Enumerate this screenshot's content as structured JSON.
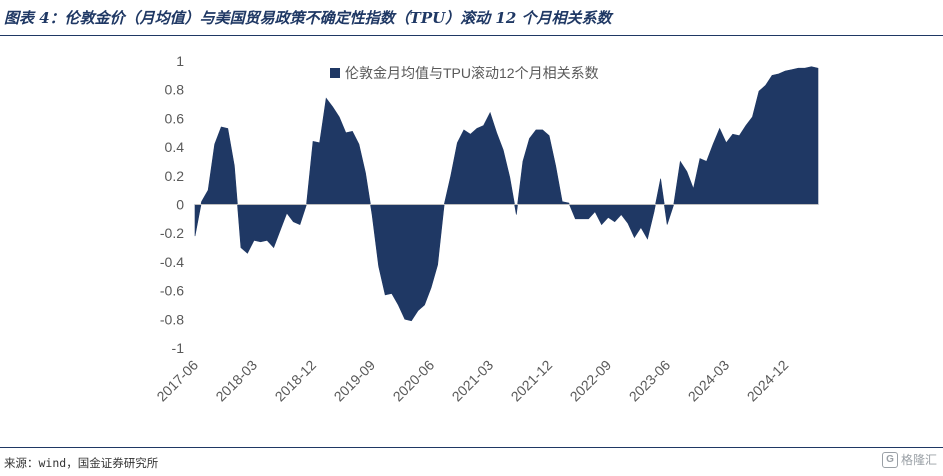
{
  "header": {
    "title": "图表 4：伦敦金价（月均值）与美国贸易政策不确定性指数（TPU）滚动 12 个月相关系数"
  },
  "footer": {
    "source": "来源：wind，国金证券研究所"
  },
  "watermark": {
    "logo": "G",
    "text": "格隆汇"
  },
  "colors": {
    "series": "#1f3864",
    "axis": "#bfbfbf",
    "text": "#595959"
  },
  "chart_data": {
    "type": "area",
    "ylim": [
      -1,
      1
    ],
    "yticks": [
      "1",
      "0.8",
      "0.6",
      "0.4",
      "0.2",
      "0",
      "-0.2",
      "-0.4",
      "-0.6",
      "-0.8",
      "-1"
    ],
    "xticks": [
      "2017-06",
      "2018-03",
      "2018-12",
      "2019-09",
      "2020-06",
      "2021-03",
      "2021-12",
      "2022-09",
      "2023-06",
      "2024-03",
      "2024-12"
    ],
    "x_start": "2017-06",
    "x_end": "2025-04",
    "legend_position": "top",
    "series": [
      {
        "name": "伦敦金月均值与TPU滚动12个月相关系数",
        "values": [
          -0.22,
          0.02,
          0.1,
          0.42,
          0.54,
          0.53,
          0.27,
          -0.3,
          -0.34,
          -0.25,
          -0.26,
          -0.25,
          -0.3,
          -0.18,
          -0.06,
          -0.12,
          -0.14,
          0.0,
          0.44,
          0.43,
          0.74,
          0.68,
          0.61,
          0.5,
          0.51,
          0.42,
          0.22,
          -0.07,
          -0.43,
          -0.63,
          -0.62,
          -0.7,
          -0.8,
          -0.81,
          -0.74,
          -0.7,
          -0.58,
          -0.42,
          0.0,
          0.2,
          0.43,
          0.52,
          0.49,
          0.53,
          0.55,
          0.64,
          0.5,
          0.38,
          0.19,
          -0.07,
          0.3,
          0.46,
          0.52,
          0.52,
          0.48,
          0.27,
          0.02,
          0.01,
          -0.1,
          -0.1,
          -0.1,
          -0.05,
          -0.14,
          -0.09,
          -0.12,
          -0.07,
          -0.13,
          -0.23,
          -0.16,
          -0.24,
          -0.05,
          0.18,
          -0.14,
          0.0,
          0.3,
          0.23,
          0.11,
          0.32,
          0.3,
          0.42,
          0.53,
          0.43,
          0.49,
          0.48,
          0.55,
          0.61,
          0.79,
          0.83,
          0.9,
          0.91,
          0.93,
          0.94,
          0.95,
          0.95,
          0.96,
          0.95
        ]
      }
    ]
  }
}
